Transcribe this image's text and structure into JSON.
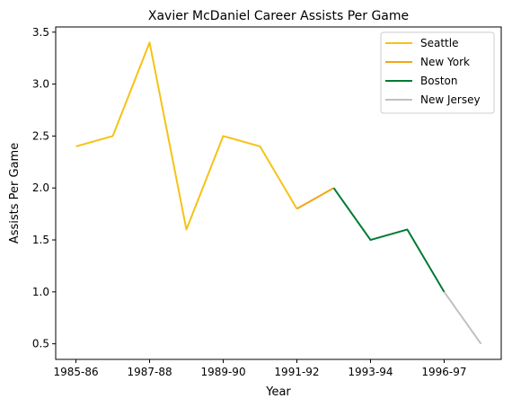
{
  "chart_data": {
    "type": "line",
    "title": "Xavier McDaniel Career Assists Per Game",
    "xlabel": "Year",
    "ylabel": "Assists Per Game",
    "x_tick_labels": [
      "1985-86",
      "1987-88",
      "1989-90",
      "1991-92",
      "1993-94",
      "1996-97"
    ],
    "x_tick_index": [
      0,
      2,
      4,
      6,
      8,
      10
    ],
    "y_ticks": [
      0.5,
      1.0,
      1.5,
      2.0,
      2.5,
      3.0,
      3.5
    ],
    "y_tick_labels": [
      "0.5",
      "1.0",
      "1.5",
      "2.0",
      "2.5",
      "3.0",
      "3.5"
    ],
    "ylim": [
      0.35,
      3.55
    ],
    "xlim": [
      -0.55,
      11.55
    ],
    "grid": false,
    "legend_position": "top-right",
    "series": [
      {
        "name": "Seattle",
        "color": "#f6c215",
        "x": [
          0,
          1,
          2,
          3,
          4,
          5,
          6
        ],
        "y": [
          2.4,
          2.5,
          3.4,
          1.6,
          2.5,
          2.4,
          1.8
        ]
      },
      {
        "name": "New York",
        "color": "#f5a418",
        "x": [
          6,
          7
        ],
        "y": [
          1.8,
          2.0
        ]
      },
      {
        "name": "Boston",
        "color": "#007a33",
        "x": [
          7,
          8,
          9,
          10
        ],
        "y": [
          2.0,
          1.5,
          1.6,
          1.0
        ]
      },
      {
        "name": "New Jersey",
        "color": "#c0c0c0",
        "x": [
          10,
          11
        ],
        "y": [
          1.0,
          0.5
        ]
      }
    ]
  }
}
